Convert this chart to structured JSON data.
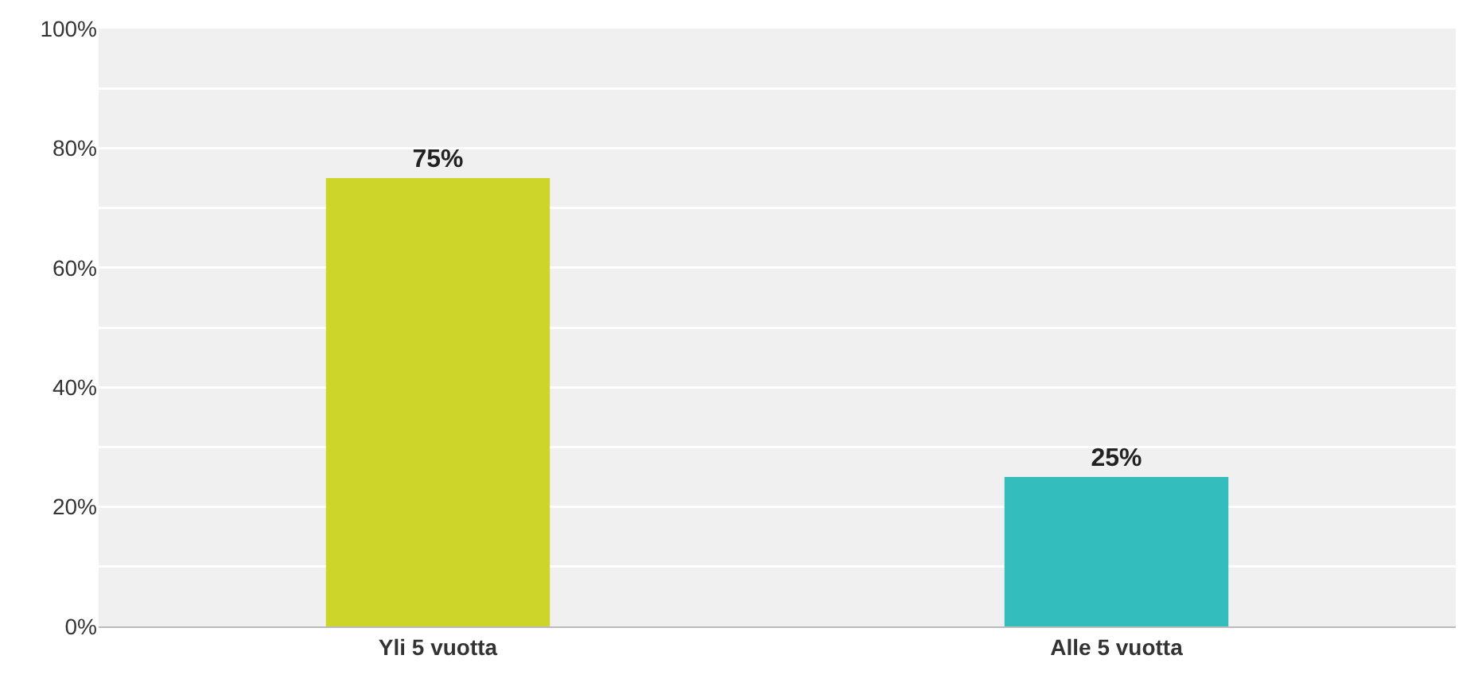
{
  "chart_data": {
    "type": "bar",
    "categories": [
      "Yli 5 vuotta",
      "Alle 5 vuotta"
    ],
    "values": [
      75,
      25
    ],
    "colors": [
      "#cdd42a",
      "#33bdbd"
    ],
    "value_labels": [
      "75%",
      "25%"
    ],
    "ylim": [
      0,
      100
    ],
    "yticks": [
      {
        "value": 0,
        "label": "0%"
      },
      {
        "value": 10,
        "label": null
      },
      {
        "value": 20,
        "label": "20%"
      },
      {
        "value": 30,
        "label": null
      },
      {
        "value": 40,
        "label": "40%"
      },
      {
        "value": 50,
        "label": null
      },
      {
        "value": 60,
        "label": "60%"
      },
      {
        "value": 70,
        "label": null
      },
      {
        "value": 80,
        "label": "80%"
      },
      {
        "value": 90,
        "label": null
      },
      {
        "value": 100,
        "label": "100%"
      }
    ],
    "grid": "y"
  }
}
